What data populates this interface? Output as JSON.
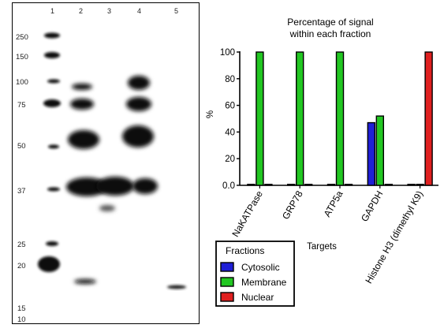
{
  "blot": {
    "lanes": [
      "1",
      "2",
      "3",
      "4",
      "5"
    ],
    "markers": [
      "250",
      "150",
      "100",
      "75",
      "50",
      "37",
      "25",
      "20",
      "15",
      "10"
    ]
  },
  "chart_data": {
    "type": "bar",
    "title": "Percentage of signal\nwithin each fraction",
    "xlabel": "Targets",
    "ylabel": "%",
    "ylim": [
      0,
      100
    ],
    "yticks": [
      "0.0",
      "20",
      "40",
      "60",
      "80",
      "100"
    ],
    "categories": [
      "NaKATPase",
      "GRP78",
      "ATP5a",
      "GAPDH",
      "Histone H3 (dimethyl K9)"
    ],
    "series": [
      {
        "name": "Cytosolic",
        "color": "#1f1fd6",
        "values": [
          0,
          0,
          0,
          47,
          0
        ]
      },
      {
        "name": "Membrane",
        "color": "#22c722",
        "values": [
          100,
          100,
          100,
          52,
          0
        ]
      },
      {
        "name": "Nuclear",
        "color": "#e02020",
        "values": [
          0,
          0,
          0,
          0,
          100
        ]
      }
    ],
    "legend": {
      "title": "Fractions",
      "position": "bottom-left"
    }
  }
}
